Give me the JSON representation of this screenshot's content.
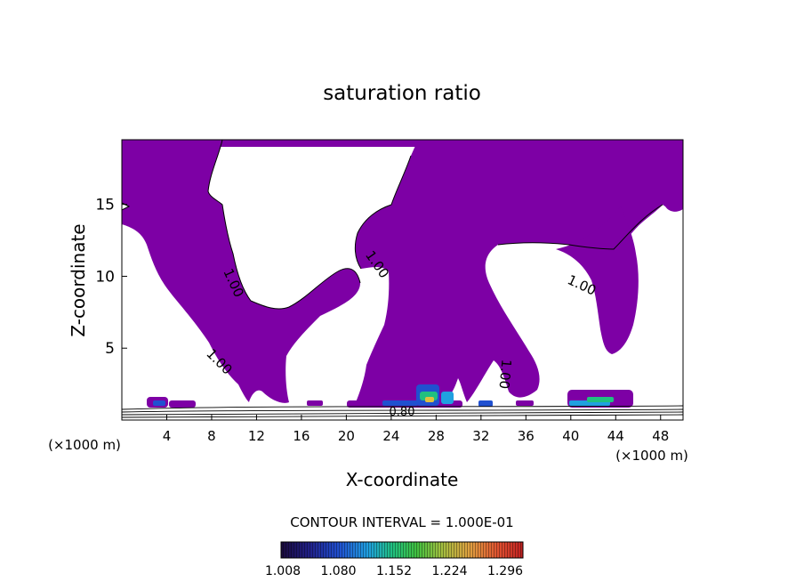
{
  "chart_data": {
    "type": "heatmap",
    "title": "saturation ratio",
    "xlabel": "X-coordinate",
    "ylabel": "Z-coordinate",
    "x_unit_left": "(×1000 m)",
    "x_unit_right": "(×1000 m)",
    "xlim": [
      0,
      50
    ],
    "ylim": [
      0,
      19.5
    ],
    "x_ticks": [
      4,
      8,
      12,
      16,
      20,
      24,
      28,
      32,
      36,
      40,
      44,
      48
    ],
    "y_ticks": [
      5,
      10,
      15
    ],
    "contour_interval_text": "CONTOUR INTERVAL = 1.000E-01",
    "contour_labels": [
      "1.00",
      "1.00",
      "1.00",
      "1.00",
      "1.00",
      "1.00",
      "0.80"
    ],
    "colorbar": {
      "tick_labels": [
        "1.008",
        "1.080",
        "1.152",
        "1.224",
        "1.296"
      ],
      "range": [
        1.008,
        1.33
      ],
      "colors": [
        "#1a0a3a",
        "#20208a",
        "#2050d0",
        "#20a0e0",
        "#20c080",
        "#40c040",
        "#a0c040",
        "#e0a040",
        "#e05030",
        "#c02020"
      ]
    },
    "region_color": "#7d00a5",
    "grid": false
  }
}
